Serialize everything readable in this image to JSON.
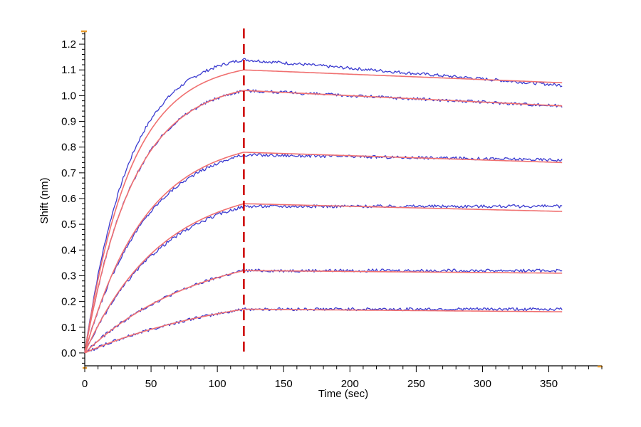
{
  "chart_data": {
    "type": "line",
    "title": "",
    "xlabel": "Time (sec)",
    "ylabel": "Shift (nm)",
    "xlim": [
      0,
      390
    ],
    "ylim": [
      -0.05,
      1.25
    ],
    "x_ticks": [
      0,
      50,
      100,
      150,
      200,
      250,
      300,
      350
    ],
    "x_tick_labels": [
      "0",
      "50",
      "100",
      "150",
      "200",
      "250",
      "300",
      "350"
    ],
    "y_ticks": [
      0.0,
      0.1,
      0.2,
      0.3,
      0.4,
      0.5,
      0.6,
      0.7,
      0.8,
      0.9,
      1.0,
      1.1,
      1.2
    ],
    "y_tick_labels": [
      "0.0",
      "0.1",
      "0.2",
      "0.3",
      "0.4",
      "0.5",
      "0.6",
      "0.7",
      "0.8",
      "0.9",
      "1.0",
      "1.1",
      "1.2"
    ],
    "grid": false,
    "legend": "none",
    "dissociation_start_x": 120,
    "end_x": 360,
    "colors": {
      "measured": "#3b3bd0",
      "fit": "#f07070",
      "marker": "#cc0000",
      "axis": "#000000",
      "axis_end": "#e89a2a"
    },
    "series": [
      {
        "kind": "measured",
        "association_end": 1.14,
        "final": 1.04
      },
      {
        "kind": "fit",
        "association_end": 1.1,
        "final": 1.05
      },
      {
        "kind": "measured",
        "association_end": 1.02,
        "final": 0.96
      },
      {
        "kind": "fit",
        "association_end": 1.02,
        "final": 0.96
      },
      {
        "kind": "measured",
        "association_end": 0.77,
        "final": 0.75
      },
      {
        "kind": "fit",
        "association_end": 0.78,
        "final": 0.74
      },
      {
        "kind": "measured",
        "association_end": 0.57,
        "final": 0.57
      },
      {
        "kind": "fit",
        "association_end": 0.58,
        "final": 0.55
      },
      {
        "kind": "measured",
        "association_end": 0.32,
        "final": 0.32
      },
      {
        "kind": "fit",
        "association_end": 0.32,
        "final": 0.31
      },
      {
        "kind": "measured",
        "association_end": 0.17,
        "final": 0.17
      },
      {
        "kind": "fit",
        "association_end": 0.17,
        "final": 0.16
      }
    ]
  }
}
